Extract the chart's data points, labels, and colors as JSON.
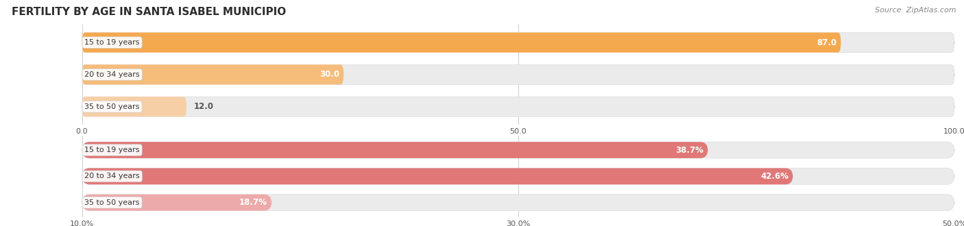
{
  "title": "FERTILITY BY AGE IN SANTA ISABEL MUNICIPIO",
  "source": "Source: ZipAtlas.com",
  "top_chart": {
    "categories": [
      "15 to 19 years",
      "20 to 34 years",
      "35 to 50 years"
    ],
    "values": [
      87.0,
      30.0,
      12.0
    ],
    "bar_colors": [
      "#F5A94F",
      "#F5BC7A",
      "#F7CFA6"
    ],
    "xlim": [
      0,
      100
    ],
    "xticks": [
      0.0,
      50.0,
      100.0
    ],
    "xtick_labels": [
      "0.0",
      "50.0",
      "100.0"
    ]
  },
  "bottom_chart": {
    "categories": [
      "15 to 19 years",
      "20 to 34 years",
      "35 to 50 years"
    ],
    "values": [
      38.7,
      42.6,
      18.7
    ],
    "bar_colors": [
      "#E07878",
      "#E07878",
      "#EDAAAA"
    ],
    "xlim": [
      10.0,
      50.0
    ],
    "xticks": [
      10.0,
      30.0,
      50.0
    ],
    "xtick_labels": [
      "10.0%",
      "30.0%",
      "50.0%"
    ]
  },
  "label_fontsize": 8.0,
  "title_fontsize": 11,
  "source_fontsize": 8,
  "value_fontsize": 8.5,
  "bar_height": 0.62,
  "background_color": "#FFFFFF",
  "track_color": "#EBEBEB",
  "grid_color": "#CCCCCC",
  "value_color_dark": "#555555",
  "value_color_light": "#FFFFFF"
}
